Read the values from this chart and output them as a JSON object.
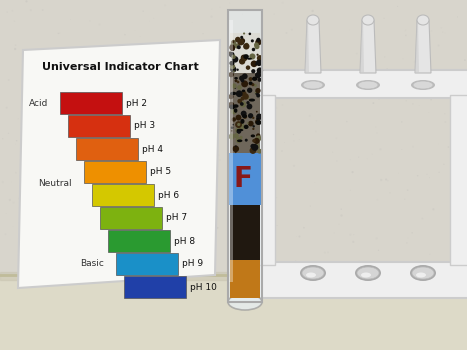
{
  "title": "Universal Indicator Chart",
  "ph_labels": [
    "pH 2",
    "pH 3",
    "pH 4",
    "pH 5",
    "pH 6",
    "pH 7",
    "pH 8",
    "pH 9",
    "pH 10"
  ],
  "ph_colors": [
    "#C41010",
    "#D63010",
    "#E06010",
    "#EE9000",
    "#D4C800",
    "#7DB210",
    "#2A9A30",
    "#1A90C8",
    "#2040A8"
  ],
  "acid_label": "Acid",
  "neutral_label": "Neutral",
  "basic_label": "Basic",
  "tube_label": "F",
  "wall_color": "#D8D5CC",
  "card_bg": "#F8F8F5",
  "rack_color": "#EFEFEF",
  "rack_shadow": "#CCCCCC",
  "bench_color": "#DDDAC8",
  "bench_shadow": "#C0BC9A",
  "tube_glass": "#E8F0F5",
  "tube_amber": "#C07818",
  "tube_dark": "#201810",
  "tube_label_bg": "#5090D8",
  "tube_label_text": "#881818",
  "peg_color": "#E5E5E5",
  "peg_shadow": "#BBBBBB"
}
